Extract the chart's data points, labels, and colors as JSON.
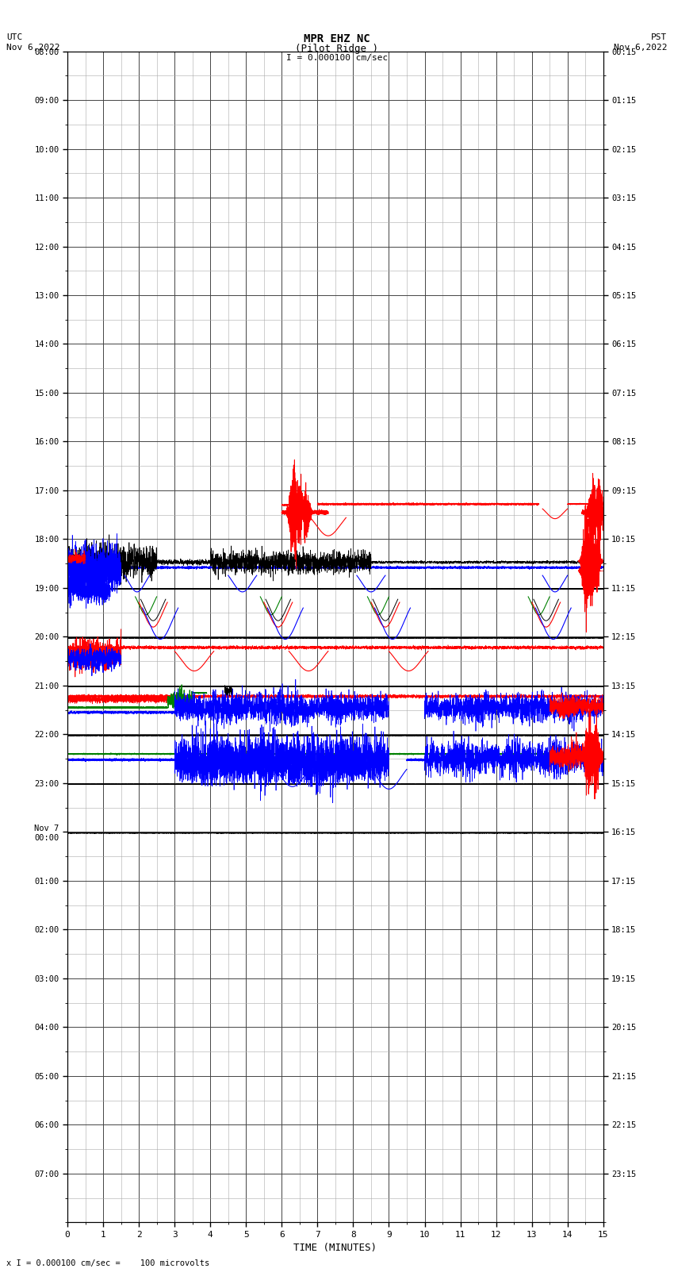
{
  "title_line1": "MPR EHZ NC",
  "title_line2": "(Pilot Ridge )",
  "scale_label": "I = 0.000100 cm/sec",
  "utc_label": "UTC\nNov 6,2022",
  "pst_label": "PST\nNov 6,2022",
  "xlabel": "TIME (MINUTES)",
  "footer_label": "x I = 0.000100 cm/sec =    100 microvolts",
  "left_yticks": [
    "08:00",
    "09:00",
    "10:00",
    "11:00",
    "12:00",
    "13:00",
    "14:00",
    "15:00",
    "16:00",
    "17:00",
    "18:00",
    "19:00",
    "20:00",
    "21:00",
    "22:00",
    "23:00",
    "Nov 7\n00:00",
    "01:00",
    "02:00",
    "03:00",
    "04:00",
    "05:00",
    "06:00",
    "07:00"
  ],
  "right_yticks": [
    "00:15",
    "01:15",
    "02:15",
    "03:15",
    "04:15",
    "05:15",
    "06:15",
    "07:15",
    "08:15",
    "09:15",
    "10:15",
    "11:15",
    "12:15",
    "13:15",
    "14:15",
    "15:15",
    "16:15",
    "17:15",
    "18:15",
    "19:15",
    "20:15",
    "21:15",
    "22:15",
    "23:15"
  ],
  "n_rows": 24,
  "xlim": [
    0,
    15
  ],
  "bg_color": "#ffffff",
  "grid_major_color": "#000000",
  "grid_minor_color": "#aaaaaa"
}
